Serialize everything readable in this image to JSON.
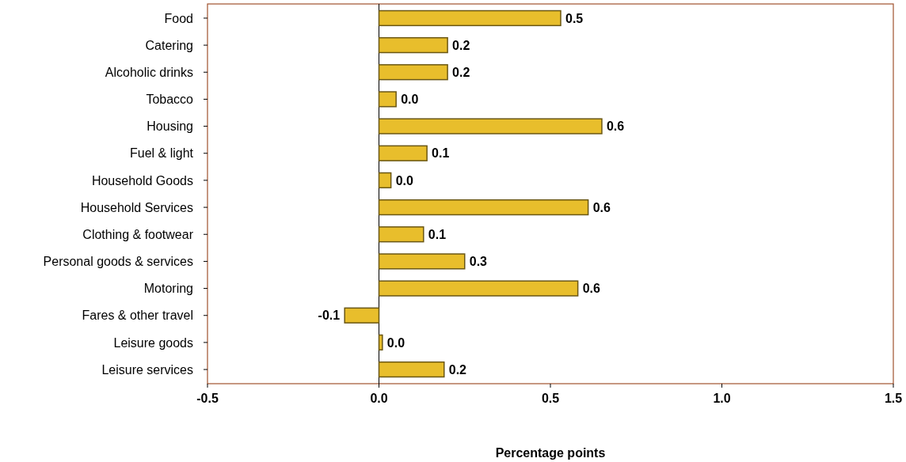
{
  "chart_data": {
    "type": "bar",
    "orientation": "horizontal",
    "xlabel": "Percentage points",
    "categories": [
      "Food",
      "Catering",
      "Alcoholic drinks",
      "Tobacco",
      "Housing",
      "Fuel & light",
      "Household Goods",
      "Household Services",
      "Clothing & footwear",
      "Personal goods & services",
      "Motoring",
      "Fares & other travel",
      "Leisure goods",
      "Leisure services"
    ],
    "values": [
      0.53,
      0.2,
      0.2,
      0.05,
      0.65,
      0.14,
      0.035,
      0.61,
      0.13,
      0.25,
      0.58,
      -0.1,
      0.01,
      0.19
    ],
    "value_labels": [
      "0.5",
      "0.2",
      "0.2",
      "0.0",
      "0.6",
      "0.1",
      "0.0",
      "0.6",
      "0.1",
      "0.3",
      "0.6",
      "-0.1",
      "0.0",
      "0.2"
    ],
    "color": "#e8be2c",
    "xlim": [
      -0.5,
      1.5
    ],
    "xticks": [
      {
        "value": -0.5,
        "label": "-0.5"
      },
      {
        "value": 0,
        "label": "0.0"
      },
      {
        "value": 0.5,
        "label": "0.5"
      },
      {
        "value": 1,
        "label": "1.0"
      },
      {
        "value": 1.5,
        "label": "1.5"
      }
    ],
    "ref_lines": [
      {
        "axis": "x",
        "value": 0,
        "color": "#000000"
      }
    ],
    "grid": false
  }
}
